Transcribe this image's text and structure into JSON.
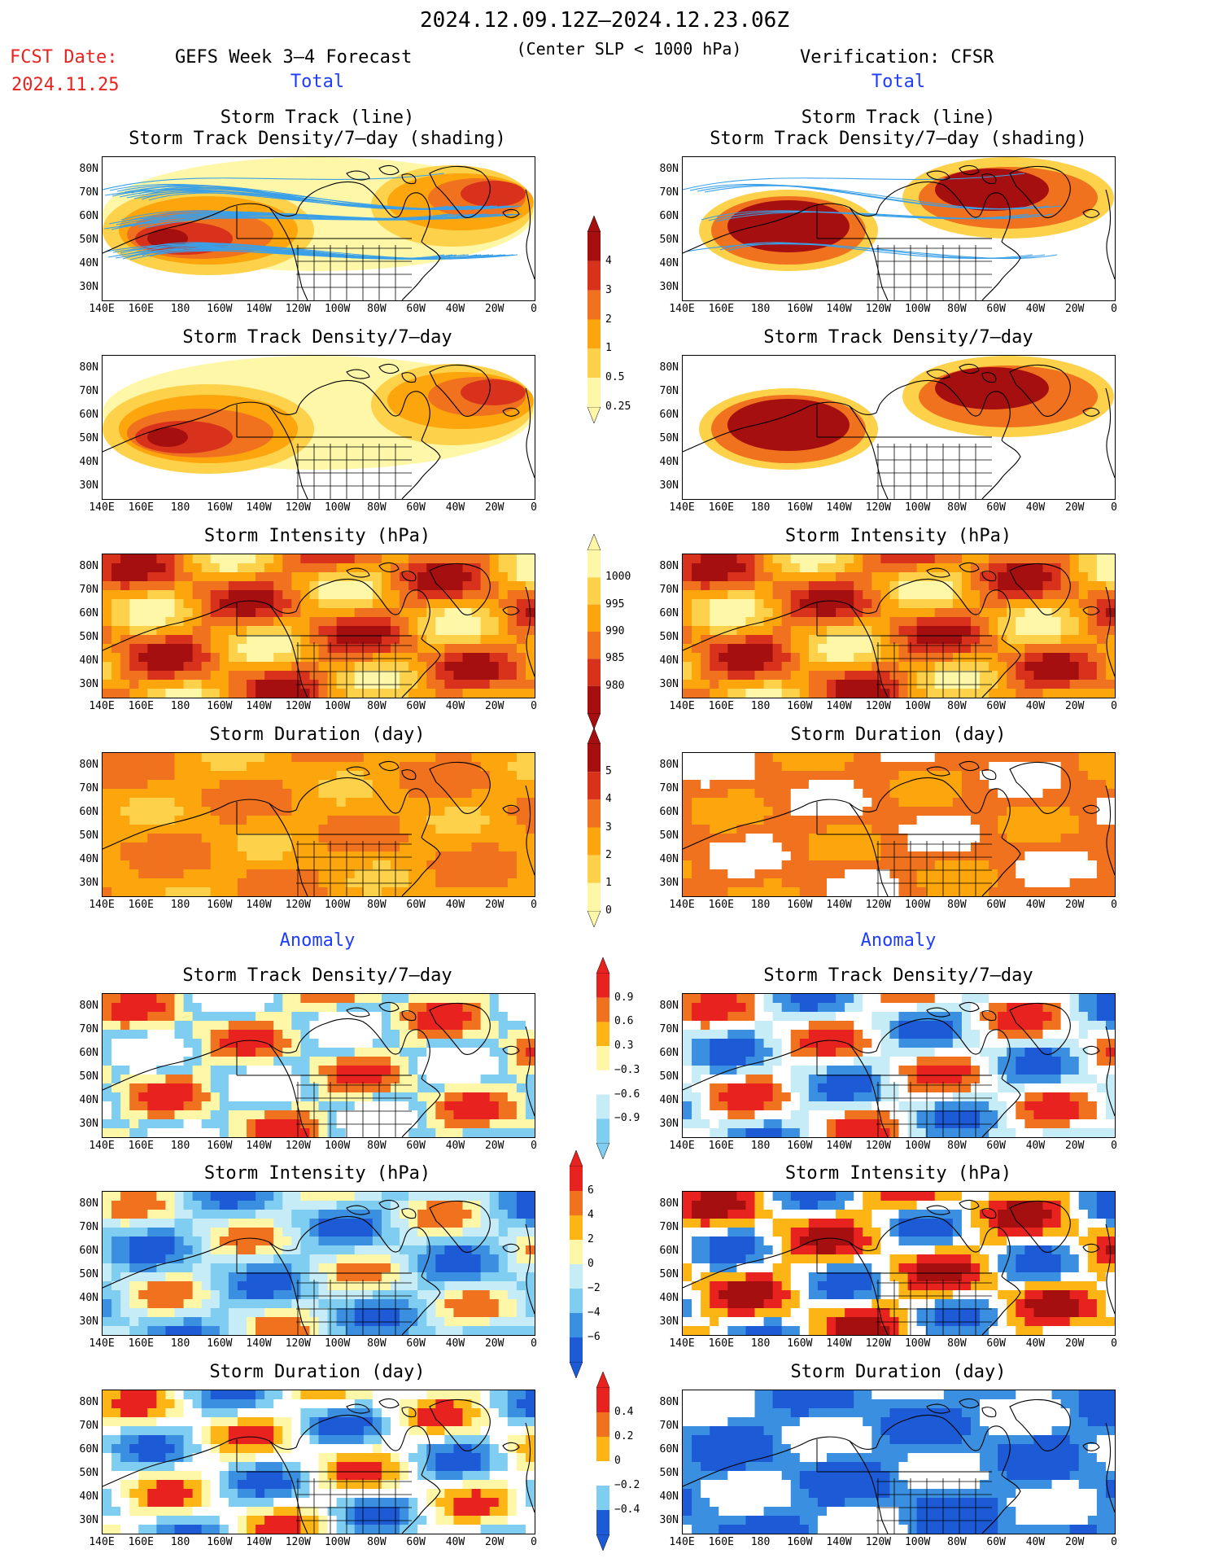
{
  "header": {
    "date_range": "2024.12.09.12Z–2024.12.23.06Z",
    "subtitle": "(Center SLP < 1000 hPa)",
    "fcst_label": "FCST Date:",
    "fcst_date": "2024.11.25",
    "left_title": "GEFS Week 3–4 Forecast",
    "right_title": "Verification: CFSR"
  },
  "sections": {
    "total": "Total",
    "anomaly": "Anomaly"
  },
  "panel_titles": {
    "track_line": "Storm Track (line)",
    "track_density_shading": "Storm Track Density/7–day (shading)",
    "track_density": "Storm Track Density/7–day",
    "intensity": "Storm Intensity (hPa)",
    "duration": "Storm Duration (day)"
  },
  "axes": {
    "lat_labels": [
      "80N",
      "70N",
      "60N",
      "50N",
      "40N",
      "30N"
    ],
    "lon_labels": [
      "140E",
      "160E",
      "180",
      "160W",
      "140W",
      "120W",
      "100W",
      "80W",
      "60W",
      "40W",
      "20W",
      "0"
    ]
  },
  "colorbars": {
    "density": {
      "labels": [
        "4",
        "3",
        "2",
        "1",
        "0.5",
        "0.25"
      ],
      "colors": [
        "#a50f0f",
        "#d8321c",
        "#f0711e",
        "#fca50c",
        "#fdd14a",
        "#fef7a8"
      ]
    },
    "intensity": {
      "labels": [
        "1000",
        "995",
        "990",
        "985",
        "980"
      ],
      "colors": [
        "#fef7a8",
        "#fdd14a",
        "#fca50c",
        "#f0711e",
        "#d8321c",
        "#a50f0f"
      ]
    },
    "duration": {
      "labels": [
        "5",
        "4",
        "3",
        "2",
        "1",
        "0"
      ],
      "colors": [
        "#a50f0f",
        "#d8321c",
        "#f0711e",
        "#fca50c",
        "#fdd14a",
        "#fef7a8"
      ]
    },
    "density_anom": {
      "labels": [
        "0.9",
        "0.6",
        "0.3",
        "−0.3",
        "−0.6",
        "−0.9"
      ]
    },
    "intensity_anom": {
      "labels": [
        "6",
        "4",
        "2",
        "0",
        "−2",
        "−4",
        "−6"
      ]
    },
    "duration_anom": {
      "labels": [
        "0.4",
        "0.2",
        "0",
        "−0.2",
        "−0.4"
      ]
    }
  },
  "colors": {
    "track_line": "#3aa0e8",
    "anom_pos": [
      "#fef7a8",
      "#fdb515",
      "#f0711e",
      "#e8231f"
    ],
    "anom_neg": [
      "#c6ecf7",
      "#7fcdf0",
      "#3a8fe0",
      "#1d5bd6"
    ]
  }
}
